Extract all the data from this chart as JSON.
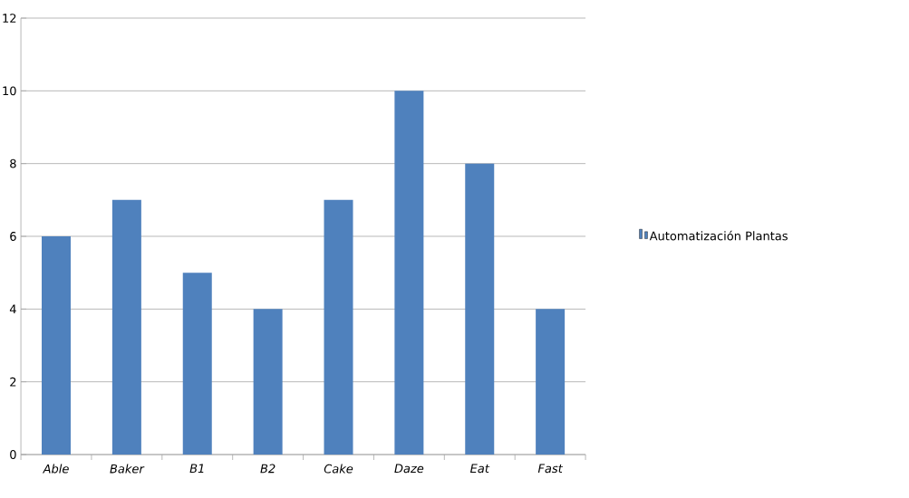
{
  "chart_data": {
    "type": "bar",
    "categories": [
      "Able",
      "Baker",
      "B1",
      "B2",
      "Cake",
      "Daze",
      "Eat",
      "Fast"
    ],
    "series": [
      {
        "name": "Automatización Plantas",
        "color": "#4f81bd",
        "values": [
          6,
          7,
          5,
          4,
          7,
          10,
          8,
          4
        ]
      }
    ],
    "ylim": [
      0,
      12
    ],
    "yticks": [
      0,
      2,
      4,
      6,
      8,
      10,
      12
    ],
    "grid": "y",
    "legend": "right"
  }
}
